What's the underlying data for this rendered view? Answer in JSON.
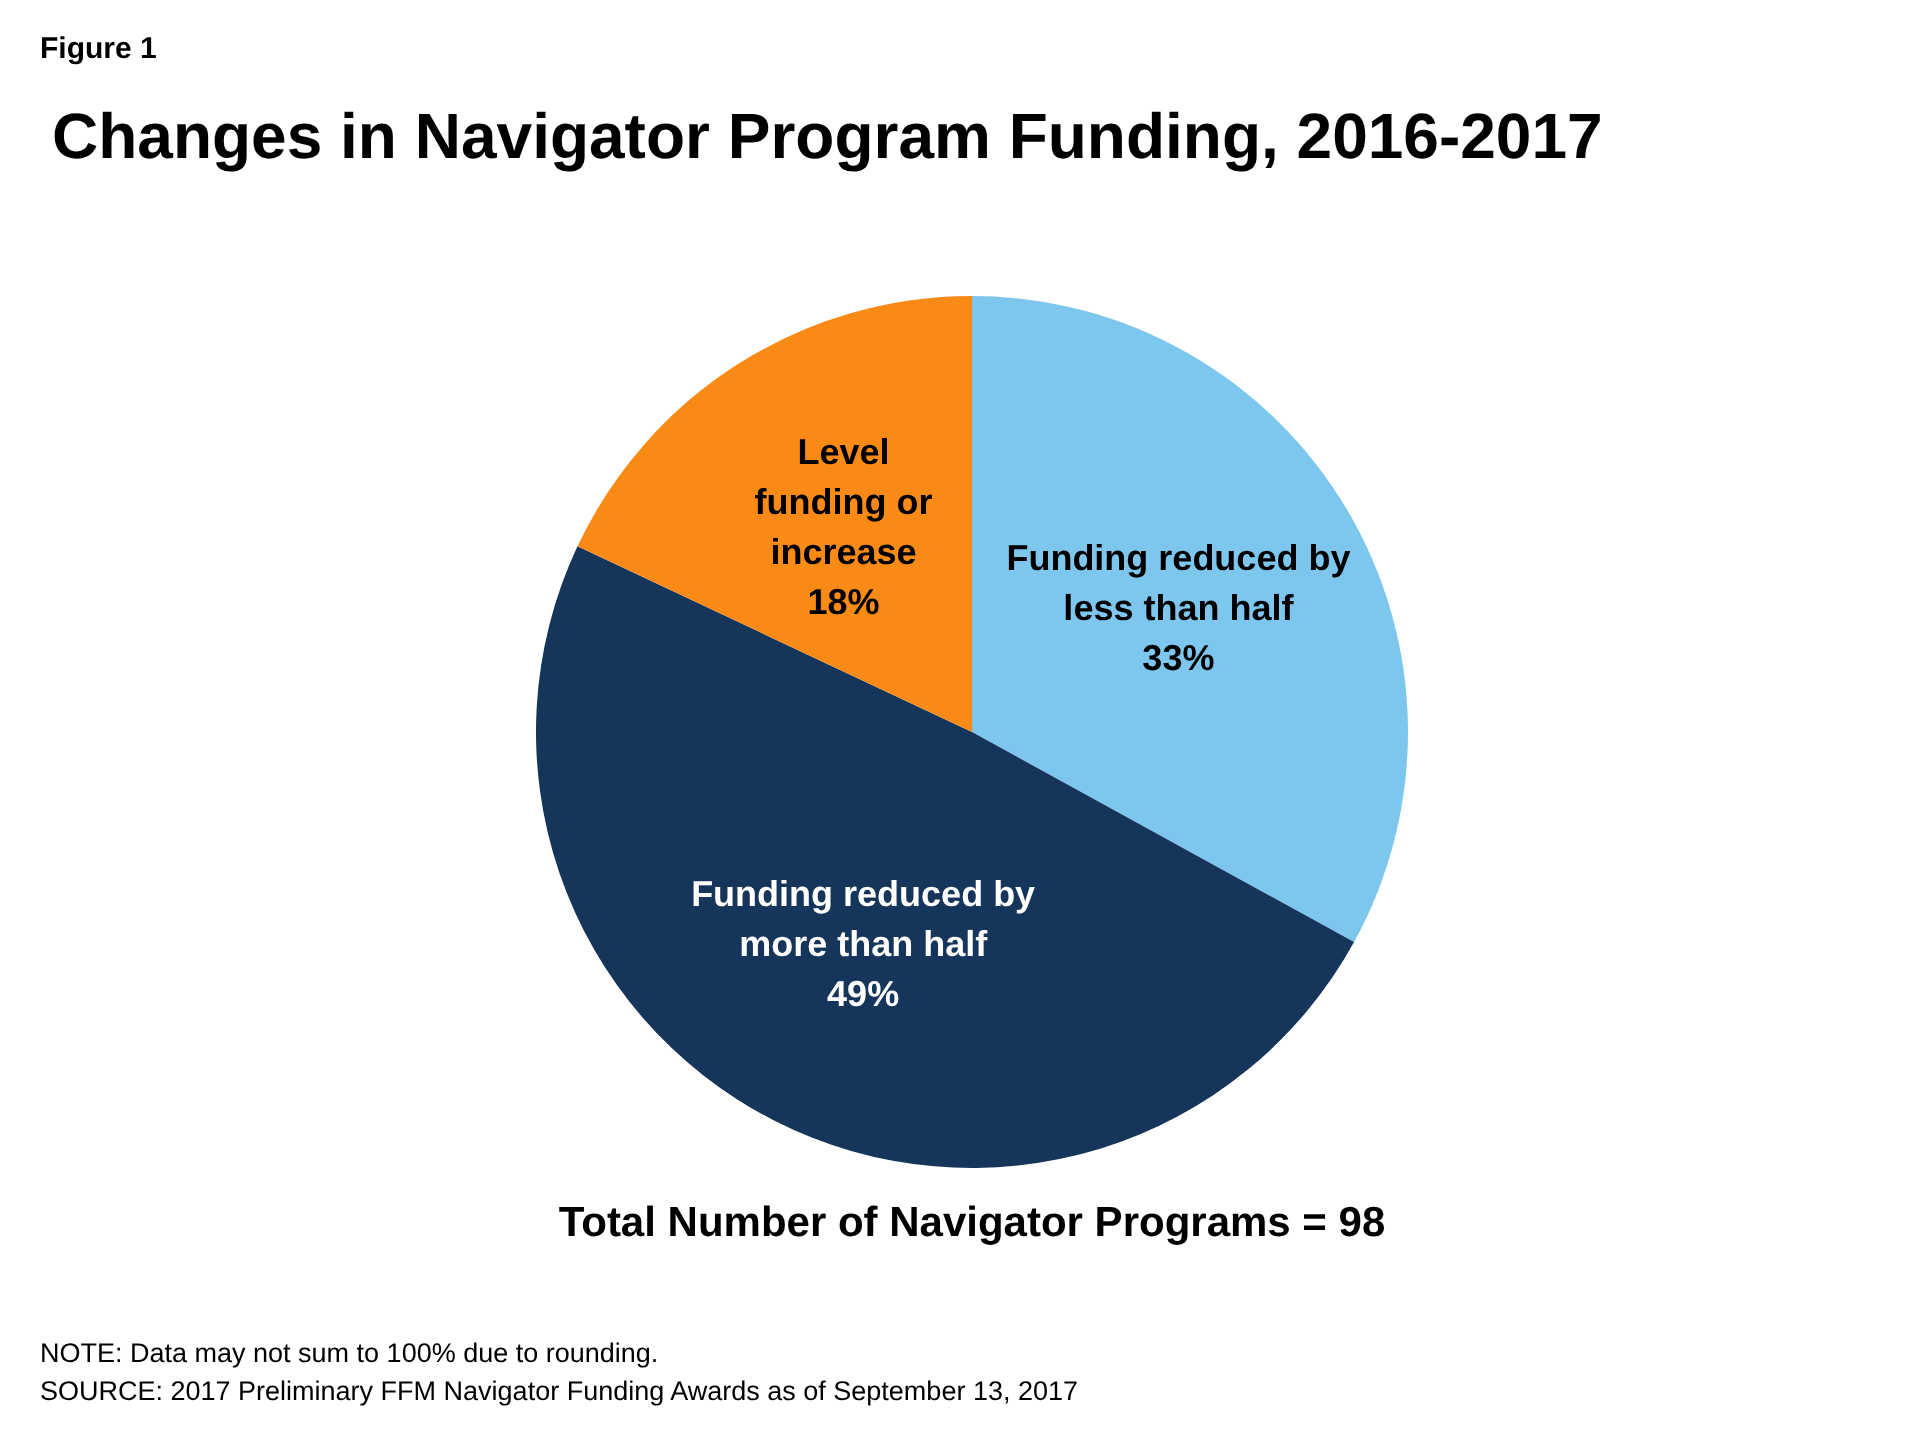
{
  "chart_data": {
    "type": "pie",
    "title": "Changes in Navigator Program Funding, 2016-2017",
    "categories": [
      "Funding reduced by less than half",
      "Funding reduced by more than half",
      "Level funding or increase"
    ],
    "values": [
      33,
      49,
      18
    ],
    "colors": [
      "#7dc6ee",
      "#15355a",
      "#f98a16"
    ],
    "value_labels": [
      "33%",
      "49%",
      "18%"
    ],
    "annotations": [
      "Figure 1",
      "Total Number of Navigator Programs = 98",
      "NOTE: Data may not sum to 100% due to rounding.",
      "SOURCE: 2017 Preliminary FFM Navigator Funding Awards as of September 13, 2017"
    ]
  }
}
